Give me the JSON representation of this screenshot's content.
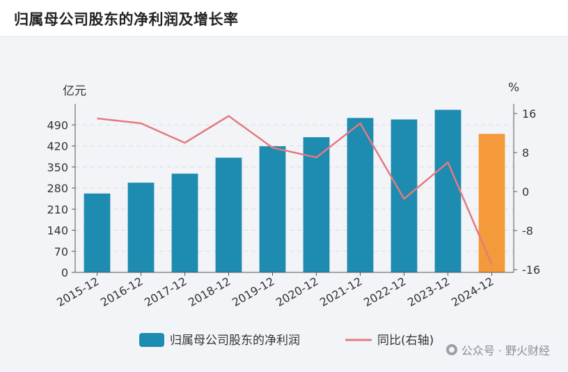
{
  "header": {
    "title": "归属母公司股东的净利润及增长率"
  },
  "units": {
    "left": "亿元",
    "right": "%"
  },
  "watermark": {
    "text": "公众号 · 野火财经"
  },
  "colors": {
    "bar": "#1e8bb0",
    "bar_highlight": "#f59a3a",
    "line": "#e27b80",
    "grid": "#d8dbe2",
    "axis": "#555555"
  },
  "chart_data": {
    "type": "bar",
    "categories": [
      "2015-12",
      "2016-12",
      "2017-12",
      "2018-12",
      "2019-12",
      "2020-12",
      "2021-12",
      "2022-12",
      "2023-12",
      "2024-12"
    ],
    "series": [
      {
        "name": "归属母公司股东的净利润",
        "type": "bar",
        "axis": "left",
        "values": [
          262,
          298,
          328,
          381,
          419,
          449,
          513,
          508,
          540,
          460
        ]
      },
      {
        "name": "同比(右轴)",
        "type": "line",
        "axis": "right",
        "values": [
          15,
          14,
          10,
          15.5,
          9,
          7,
          14,
          -1.5,
          6,
          -15
        ]
      }
    ],
    "left_axis": {
      "ticks": [
        0,
        70,
        140,
        210,
        280,
        350,
        420,
        490
      ],
      "range": [
        0,
        560
      ]
    },
    "right_axis": {
      "ticks": [
        16,
        8,
        0,
        -8,
        -16
      ],
      "range": [
        -16,
        16
      ]
    },
    "highlight_last_bar": true,
    "legend_position": "bottom",
    "grid": true
  }
}
